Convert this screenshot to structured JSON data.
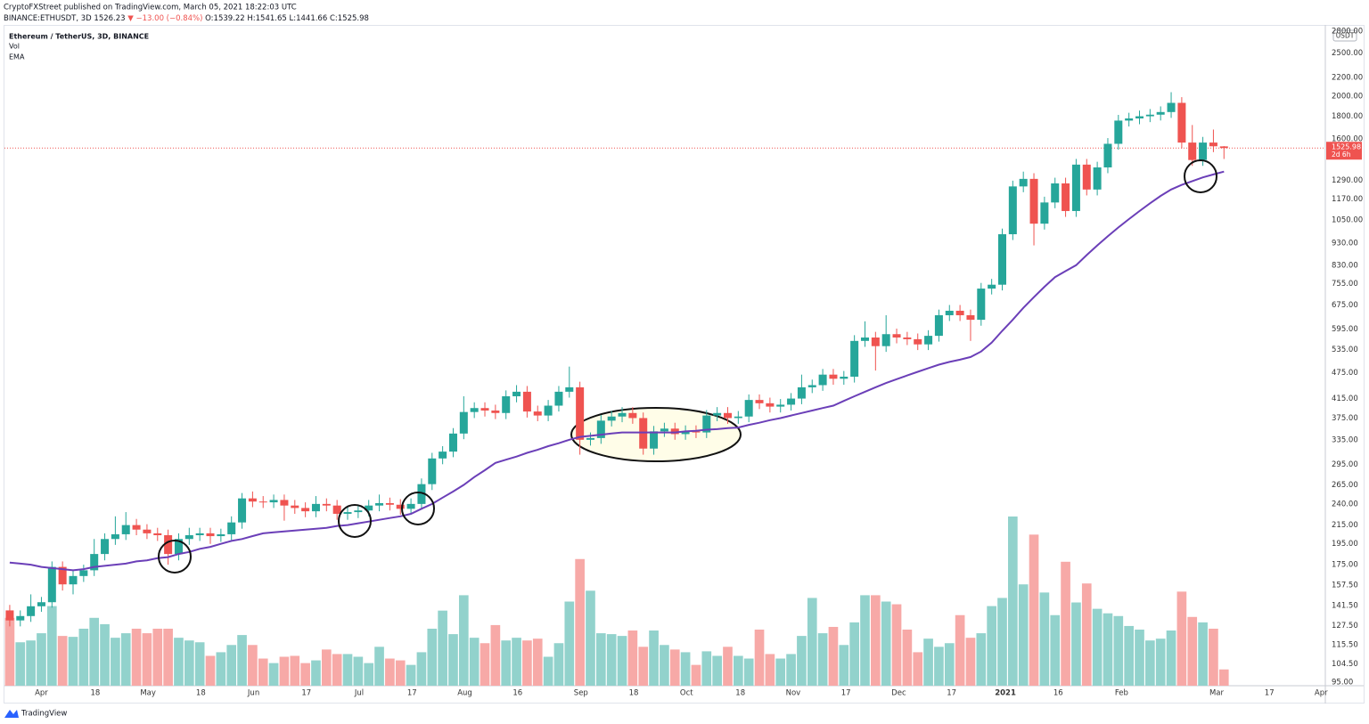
{
  "header": {
    "publisher": "CryptoFXStreet published on TradingView.com, March 05, 2021 18:22:03 UTC",
    "symbol": "BINANCE:ETHUSDT, 3D",
    "last": "1526.23",
    "change": "▼ −13.00 (−0.84%)",
    "ohlc": "O:1539.22 H:1541.65 L:1441.66 C:1525.98",
    "brand": "TradingView"
  },
  "chart_data": {
    "type": "candlestick",
    "title": "Ethereum / TetherUS, 3D, BINANCE",
    "currency": "USDT",
    "log_scale": true,
    "grid": false,
    "up_color": "#26a69a",
    "down_color": "#ef5350",
    "volume_up_color": "#92d2cc",
    "volume_down_color": "#f7a9a7",
    "last_price": {
      "value": 1525.98,
      "label": "1525.98"
    },
    "countdown": "2d 6h",
    "xlim": [
      -0.5,
      124.6
    ],
    "ylim": [
      93.3,
      2867
    ],
    "xticks": [
      {
        "value": 3,
        "label": "Apr"
      },
      {
        "value": 8.1,
        "label": "18"
      },
      {
        "value": 13.1,
        "label": "May"
      },
      {
        "value": 18.1,
        "label": "18"
      },
      {
        "value": 23.1,
        "label": "Jun"
      },
      {
        "value": 28.1,
        "label": "17"
      },
      {
        "value": 33.1,
        "label": "Jul"
      },
      {
        "value": 38.1,
        "label": "17"
      },
      {
        "value": 43.1,
        "label": "Aug"
      },
      {
        "value": 48.1,
        "label": "16"
      },
      {
        "value": 54.1,
        "label": "Sep"
      },
      {
        "value": 59.1,
        "label": "18"
      },
      {
        "value": 64.1,
        "label": "Oct"
      },
      {
        "value": 69.2,
        "label": "18"
      },
      {
        "value": 74.2,
        "label": "Nov"
      },
      {
        "value": 79.2,
        "label": "17"
      },
      {
        "value": 84.2,
        "label": "Dec"
      },
      {
        "value": 89.2,
        "label": "17"
      },
      {
        "value": 94.3,
        "label": "2021"
      },
      {
        "value": 99.3,
        "label": "16"
      },
      {
        "value": 105.3,
        "label": "Feb"
      },
      {
        "value": 114.3,
        "label": "Mar"
      },
      {
        "value": 119.3,
        "label": "17"
      },
      {
        "value": 124.2,
        "label": "Apr"
      }
    ],
    "yticks": [
      {
        "value": 95,
        "label": "95.00"
      },
      {
        "value": 104.5,
        "label": "104.50"
      },
      {
        "value": 115.5,
        "label": "115.50"
      },
      {
        "value": 127.5,
        "label": "127.50"
      },
      {
        "value": 141.5,
        "label": "141.50"
      },
      {
        "value": 157.5,
        "label": "157.50"
      },
      {
        "value": 175,
        "label": "175.00"
      },
      {
        "value": 195,
        "label": "195.00"
      },
      {
        "value": 215,
        "label": "215.00"
      },
      {
        "value": 240,
        "label": "240.00"
      },
      {
        "value": 265,
        "label": "265.00"
      },
      {
        "value": 295,
        "label": "295.00"
      },
      {
        "value": 335,
        "label": "335.00"
      },
      {
        "value": 375,
        "label": "375.00"
      },
      {
        "value": 415,
        "label": "415.00"
      },
      {
        "value": 475,
        "label": "475.00"
      },
      {
        "value": 535,
        "label": "535.00"
      },
      {
        "value": 595,
        "label": "595.00"
      },
      {
        "value": 675,
        "label": "675.00"
      },
      {
        "value": 755,
        "label": "755.00"
      },
      {
        "value": 830,
        "label": "830.00"
      },
      {
        "value": 930,
        "label": "930.00"
      },
      {
        "value": 1050,
        "label": "1050.00"
      },
      {
        "value": 1170,
        "label": "1170.00"
      },
      {
        "value": 1290,
        "label": "1290.00"
      },
      {
        "value": 1600,
        "label": "1600.00"
      },
      {
        "value": 1800,
        "label": "1800.00"
      },
      {
        "value": 2000,
        "label": "2000.00"
      },
      {
        "value": 2200,
        "label": "2200.00"
      },
      {
        "value": 2500,
        "label": "2500.00"
      },
      {
        "value": 2800,
        "label": "2800.00"
      }
    ],
    "open": [
      138,
      131,
      134,
      141,
      144,
      173,
      158,
      165,
      170,
      185,
      200,
      205,
      215,
      210,
      206,
      204,
      185,
      200,
      204,
      206,
      203,
      205,
      218,
      247,
      243,
      242,
      245,
      238,
      235,
      231,
      240,
      238,
      228,
      230,
      232,
      238,
      241,
      239,
      234,
      240,
      266,
      304,
      315,
      346,
      387,
      395,
      390,
      385,
      420,
      430,
      388,
      380,
      400,
      430,
      440,
      335,
      338,
      370,
      378,
      385,
      375,
      320,
      350,
      355,
      345,
      350,
      348,
      380,
      385,
      375,
      378,
      412,
      405,
      398,
      402,
      415,
      440,
      445,
      470,
      460,
      465,
      560,
      570,
      545,
      580,
      570,
      565,
      550,
      575,
      640,
      655,
      640,
      625,
      735,
      750,
      975,
      1250,
      1300,
      1030,
      1150,
      1270,
      1100,
      1400,
      1230,
      1380,
      1560,
      1760,
      1780,
      1800,
      1815,
      1840,
      1930,
      1570,
      1434,
      1570,
      1539.22
    ],
    "high": [
      142,
      138,
      150,
      148,
      178,
      178,
      170,
      175,
      200,
      206,
      225,
      230,
      222,
      216,
      212,
      210,
      206,
      212,
      212,
      212,
      211,
      225,
      254,
      256,
      250,
      252,
      252,
      245,
      242,
      250,
      247,
      245,
      237,
      239,
      245,
      252,
      248,
      246,
      247,
      274,
      313,
      324,
      356,
      420,
      407,
      407,
      402,
      433,
      445,
      443,
      400,
      412,
      443,
      490,
      453,
      348,
      381,
      389,
      397,
      397,
      386,
      360,
      366,
      366,
      361,
      361,
      391,
      397,
      397,
      389,
      424,
      424,
      417,
      414,
      427,
      470,
      458,
      484,
      484,
      479,
      577,
      620,
      587,
      640,
      597,
      587,
      582,
      592,
      659,
      675,
      675,
      659,
      757,
      773,
      1004,
      1288,
      1350,
      1339,
      1185,
      1308,
      1308,
      1442,
      1442,
      1421,
      1607,
      1813,
      1833,
      1854,
      1869,
      1895,
      2040,
      1988,
      1720,
      1617,
      1680,
      1541.65
    ],
    "low": [
      127,
      127,
      130,
      137,
      140,
      153,
      150,
      160,
      165,
      179,
      194,
      199,
      204,
      200,
      198,
      175,
      179,
      194,
      198,
      195,
      197,
      199,
      211,
      236,
      235,
      235,
      220,
      228,
      224,
      224,
      231,
      221,
      221,
      223,
      225,
      231,
      232,
      227,
      227,
      233,
      258,
      295,
      306,
      336,
      375,
      378,
      373,
      373,
      407,
      376,
      369,
      369,
      388,
      417,
      310,
      325,
      328,
      359,
      367,
      364,
      310,
      310,
      340,
      335,
      335,
      338,
      338,
      369,
      364,
      364,
      367,
      393,
      386,
      386,
      390,
      403,
      427,
      432,
      446,
      446,
      451,
      543,
      480,
      529,
      553,
      548,
      534,
      534,
      558,
      621,
      621,
      560,
      606,
      713,
      728,
      946,
      1213,
      920,
      999,
      1116,
      1067,
      1067,
      1193,
      1193,
      1339,
      1513,
      1707,
      1727,
      1746,
      1761,
      1785,
      1523,
      1391,
      1391,
      1494,
      1441.66
    ],
    "close": [
      131,
      134,
      141,
      144,
      173,
      158,
      165,
      170,
      185,
      200,
      205,
      215,
      210,
      206,
      204,
      185,
      200,
      204,
      206,
      203,
      205,
      218,
      247,
      243,
      242,
      245,
      238,
      235,
      231,
      240,
      238,
      228,
      230,
      232,
      238,
      241,
      239,
      234,
      240,
      266,
      304,
      315,
      346,
      387,
      395,
      390,
      385,
      420,
      430,
      388,
      380,
      400,
      430,
      440,
      335,
      338,
      370,
      378,
      385,
      375,
      320,
      350,
      355,
      345,
      350,
      348,
      380,
      385,
      375,
      378,
      412,
      405,
      398,
      402,
      415,
      440,
      445,
      470,
      460,
      465,
      560,
      570,
      545,
      580,
      570,
      565,
      550,
      575,
      640,
      655,
      640,
      625,
      735,
      750,
      975,
      1250,
      1300,
      1030,
      1150,
      1270,
      1100,
      1400,
      1230,
      1380,
      1560,
      1760,
      1780,
      1800,
      1815,
      1840,
      1930,
      1570,
      1434,
      1570,
      1540,
      1525.98
    ],
    "series": [
      {
        "name": "Vol",
        "values": [
          75,
          48,
          50,
          58,
          88,
          55,
          54,
          63,
          75,
          68,
          53,
          58,
          63,
          58,
          63,
          63,
          53,
          50,
          48,
          33,
          37,
          45,
          56,
          45,
          30,
          25,
          32,
          33,
          25,
          28,
          40,
          35,
          35,
          32,
          25,
          43,
          30,
          28,
          23,
          37,
          63,
          83,
          57,
          100,
          53,
          47,
          67,
          50,
          53,
          50,
          52,
          32,
          47,
          93,
          140,
          105,
          58,
          57,
          55,
          61,
          43,
          61,
          45,
          40,
          37,
          23,
          38,
          33,
          43,
          33,
          30,
          62,
          35,
          30,
          35,
          55,
          97,
          58,
          65,
          45,
          70,
          100,
          100,
          93,
          90,
          62,
          37,
          52,
          43,
          47,
          78,
          53,
          58,
          88,
          97,
          187,
          112,
          167,
          103,
          78,
          137,
          92,
          113,
          85,
          80,
          77,
          66,
          62,
          50,
          52,
          61,
          104,
          76,
          70,
          63,
          18
        ]
      },
      {
        "name": "EMA",
        "color": "#6b3fb8",
        "values": [
          177,
          176,
          175,
          173,
          172,
          171,
          170,
          171,
          173,
          174,
          175,
          176,
          178,
          179,
          181,
          182,
          185,
          187,
          190,
          192,
          195,
          198,
          200,
          203,
          206,
          207,
          208,
          209,
          210,
          211,
          212,
          214,
          215,
          217,
          219,
          221,
          223,
          225,
          228,
          234,
          240,
          248,
          256,
          265,
          276,
          286,
          297,
          302,
          307,
          313,
          318,
          324,
          329,
          335,
          340,
          342,
          344,
          346,
          348,
          348,
          348,
          348,
          348,
          348,
          350,
          351,
          353,
          354,
          356,
          357,
          362,
          366,
          371,
          375,
          380,
          385,
          390,
          395,
          400,
          410,
          420,
          430,
          440,
          450,
          459,
          468,
          477,
          486,
          495,
          502,
          508,
          515,
          530,
          555,
          590,
          625,
          665,
          703,
          742,
          780,
          805,
          830,
          875,
          920,
          965,
          1010,
          1055,
          1100,
          1145,
          1190,
          1230,
          1260,
          1285,
          1310,
          1330,
          1350
        ]
      }
    ]
  }
}
